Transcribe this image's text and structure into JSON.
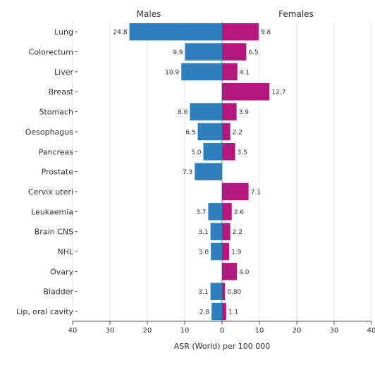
{
  "chart_data": {
    "type": "bar",
    "orientation": "horizontal",
    "layout": "population-pyramid",
    "categories": [
      "Lung",
      "Colorectum",
      "Liver",
      "Breast",
      "Stomach",
      "Oesophagus",
      "Pancreas",
      "Prostate",
      "Cervix uteri",
      "Leukaemia",
      "Brain CNS",
      "NHL",
      "Ovary",
      "Bladder",
      "Lip, oral cavity"
    ],
    "series": [
      {
        "name": "Males",
        "side": "left",
        "color": "#2e7fbb",
        "values": [
          24.8,
          9.9,
          10.9,
          null,
          8.6,
          6.5,
          5.0,
          7.3,
          null,
          3.7,
          3.1,
          3.0,
          null,
          3.1,
          2.8
        ],
        "labels": [
          "24.8",
          "9.9",
          "10.9",
          "",
          "8.6",
          "6.5",
          "5.0",
          "7.3",
          "",
          "3.7",
          "3.1",
          "3.0",
          "",
          "3.1",
          "2.8"
        ]
      },
      {
        "name": "Females",
        "side": "right",
        "color": "#b5177f",
        "values": [
          9.8,
          6.5,
          4.1,
          12.7,
          3.9,
          2.2,
          3.5,
          null,
          7.1,
          2.6,
          2.2,
          1.9,
          4.0,
          0.8,
          1.1
        ],
        "labels": [
          "9.8",
          "6.5",
          "4.1",
          "12.7",
          "3.9",
          "2.2",
          "3.5",
          "",
          "7.1",
          "2.6",
          "2.2",
          "1.9",
          "4.0",
          "0.80",
          "1.1"
        ]
      }
    ],
    "xlabel": "ASR (World) per 100 000",
    "xlim": [
      -40,
      40
    ],
    "xticks": [
      -40,
      -30,
      -20,
      -10,
      0,
      10,
      20,
      30,
      40
    ],
    "xtick_labels": [
      "40",
      "30",
      "20",
      "10",
      "0",
      "10",
      "20",
      "30",
      "40"
    ],
    "grid": true
  }
}
